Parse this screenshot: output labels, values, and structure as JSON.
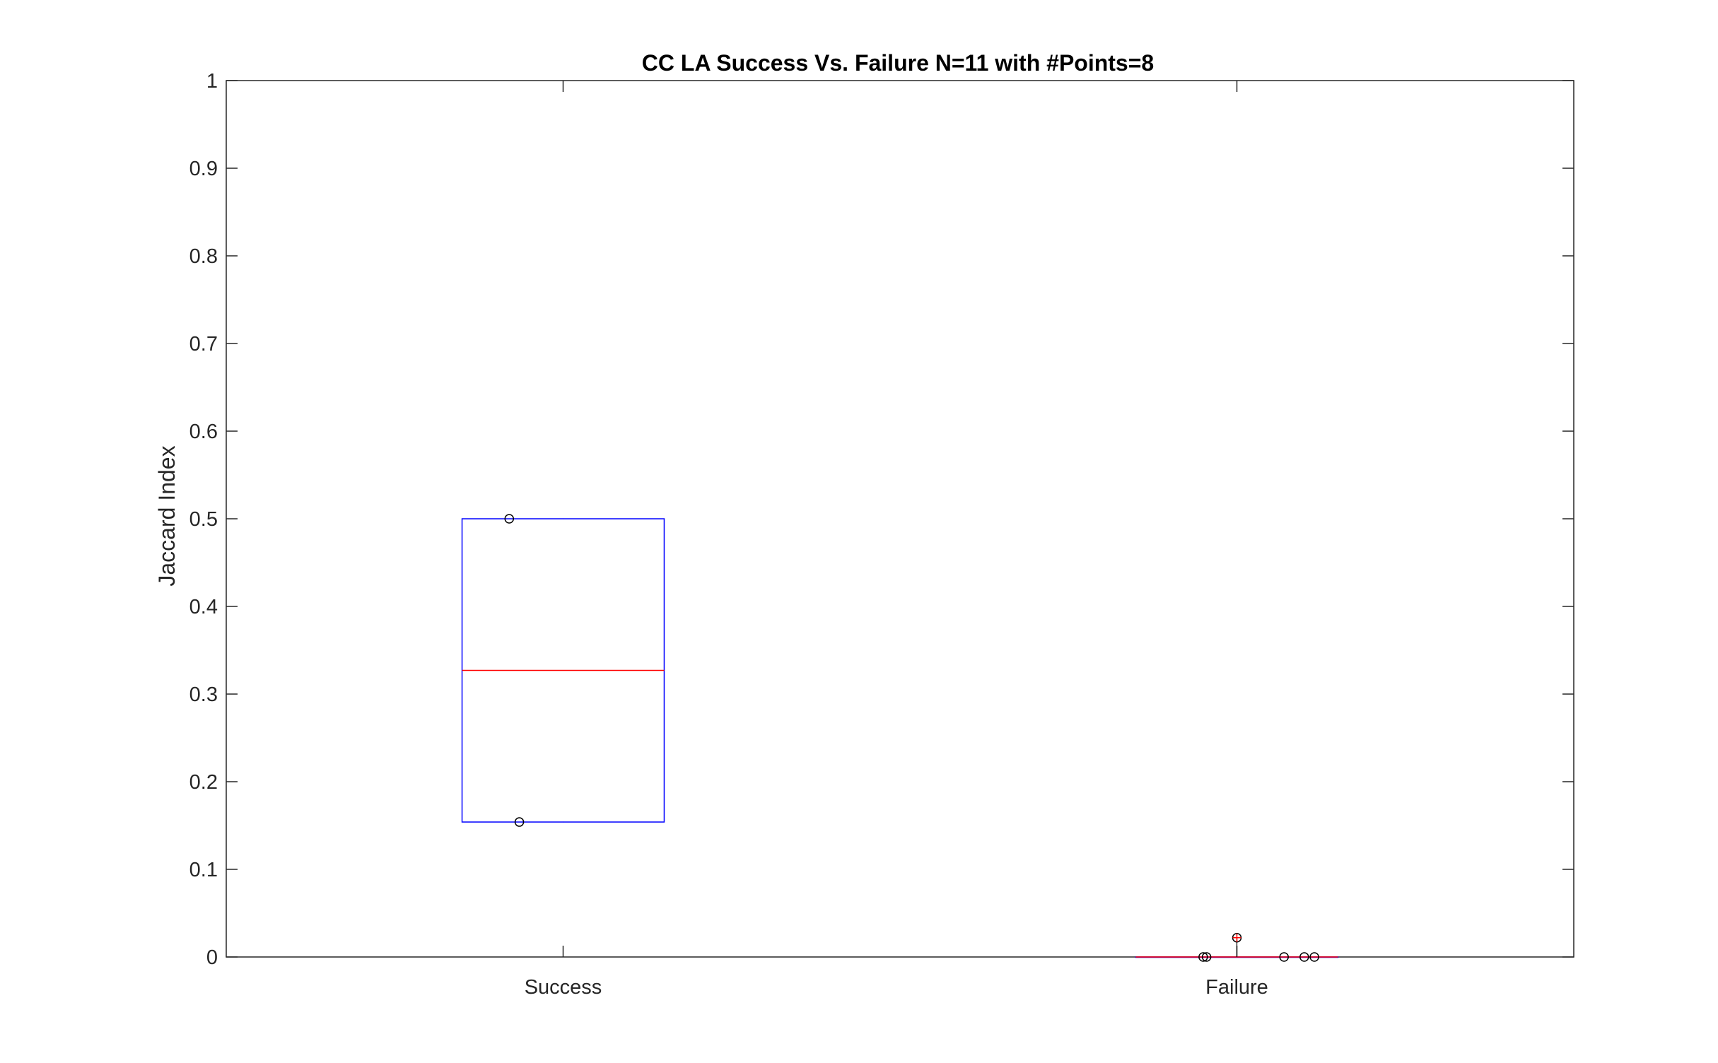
{
  "chart_data": {
    "type": "box",
    "title": "CC LA Success Vs. Failure N=11 with #Points=8",
    "xlabel": "",
    "ylabel": "Jaccard Index",
    "ylim": [
      0,
      1
    ],
    "yticks": [
      "0",
      "0.1",
      "0.2",
      "0.3",
      "0.4",
      "0.5",
      "0.6",
      "0.7",
      "0.8",
      "0.9",
      "1"
    ],
    "categories": [
      "Success",
      "Failure"
    ],
    "grid": false,
    "colors": {
      "box": "#0000ff",
      "median": "#ff0000",
      "points": "#000000",
      "outlier": "#ff0000",
      "axis": "#262626"
    },
    "boxes": [
      {
        "category": "Success",
        "q1": 0.154,
        "median": 0.327,
        "q3": 0.5,
        "whisker_low": 0.154,
        "whisker_high": 0.5,
        "points": [
          {
            "offset": -0.08,
            "y": 0.5
          },
          {
            "offset": -0.065,
            "y": 0.154
          }
        ],
        "outliers": []
      },
      {
        "category": "Failure",
        "q1": 0,
        "median": 0,
        "q3": 0,
        "whisker_low": 0,
        "whisker_high": 0,
        "points": [
          {
            "offset": -0.05,
            "y": 0
          },
          {
            "offset": -0.045,
            "y": 0
          },
          {
            "offset": 0.07,
            "y": 0
          },
          {
            "offset": 0.1,
            "y": 0
          },
          {
            "offset": 0.115,
            "y": 0
          },
          {
            "offset": 0.0,
            "y": 0.022
          }
        ],
        "outliers": [
          0.022
        ]
      }
    ]
  }
}
